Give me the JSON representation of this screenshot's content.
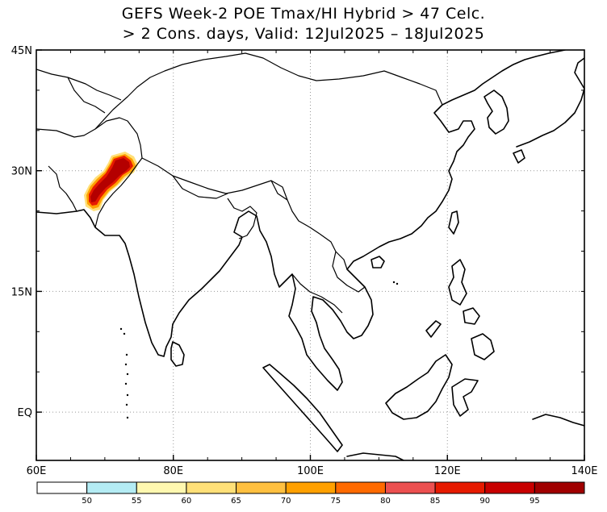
{
  "title": {
    "line1": "GEFS Week-2 POE Tmax/HI Hybrid > 47 Celc.",
    "line2": "> 2 Cons. days, Valid: 12Jul2025 – 18Jul2025"
  },
  "map": {
    "lon_range": [
      60,
      140
    ],
    "lat_range": [
      -6,
      45
    ],
    "lon_ticks": [
      {
        "value": 60,
        "label": "60E"
      },
      {
        "value": 80,
        "label": "80E"
      },
      {
        "value": 100,
        "label": "100E"
      },
      {
        "value": 120,
        "label": "120E"
      },
      {
        "value": 140,
        "label": "140E"
      }
    ],
    "lat_ticks": [
      {
        "value": 45,
        "label": "45N"
      },
      {
        "value": 30,
        "label": "30N"
      },
      {
        "value": 15,
        "label": "15N"
      },
      {
        "value": 0,
        "label": "EQ"
      }
    ],
    "gridlines": "dotted",
    "hotspot_region": "Pakistan / NW India (Indus valley)",
    "hotspot_peak_percent": 95
  },
  "colorbar": {
    "colors": [
      "#ffffff",
      "#b4ecf4",
      "#fff8b0",
      "#ffe078",
      "#ffc040",
      "#ffa000",
      "#ff6a00",
      "#ec5050",
      "#e61a00",
      "#c80000",
      "#a00000"
    ],
    "labels": [
      "50",
      "55",
      "60",
      "65",
      "70",
      "75",
      "80",
      "85",
      "90",
      "95"
    ]
  }
}
